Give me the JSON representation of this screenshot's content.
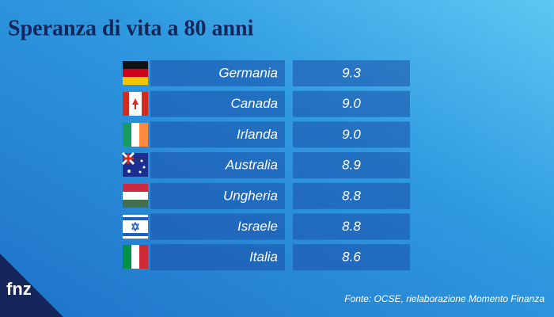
{
  "header": {
    "title": "Speranza di vita a 80 anni"
  },
  "table": {
    "rows": [
      [
        "Germania",
        "9.3"
      ],
      [
        "Canada",
        "9.0"
      ],
      [
        "Irlanda",
        "9.0"
      ],
      [
        "Australia",
        "8.9"
      ],
      [
        "Ungheria",
        "8.8"
      ],
      [
        "Israele",
        "8.8"
      ],
      [
        "Italia",
        "8.6"
      ]
    ]
  },
  "footer": {
    "source": "Fonte: OCSE, rielaborazione Momento Finanza",
    "logo": "fnz"
  }
}
